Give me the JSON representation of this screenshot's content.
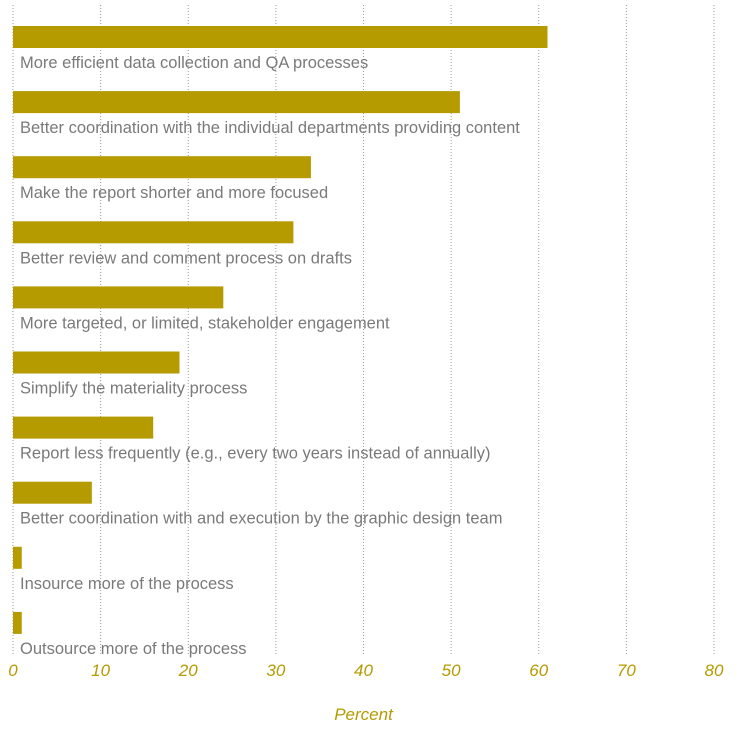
{
  "chart_data": {
    "type": "bar",
    "orientation": "horizontal",
    "categories": [
      "More efficient data collection and QA processes",
      "Better coordination with the individual departments providing content",
      "Make the report shorter and more focused",
      "Better review and comment process on drafts",
      "More targeted, or limited, stakeholder engagement",
      "Simplify the materiality process",
      "Report less frequently (e.g., every two years instead of annually)",
      "Better coordination with and execution by the graphic design team",
      "Insource more of the process",
      "Outsource more of the process"
    ],
    "values": [
      61,
      51,
      34,
      32,
      24,
      19,
      16,
      9,
      1,
      1
    ],
    "xlabel": "Percent",
    "ylabel": "",
    "xlim": [
      0,
      80
    ],
    "xticks": [
      "0",
      "10",
      "20",
      "30",
      "40",
      "50",
      "60",
      "70",
      "80"
    ],
    "grid": "vertical dotted",
    "legend": "none",
    "colors": {
      "bar": "#b59a00",
      "category_text": "#7a7a7a",
      "axis_text": "#b59a00",
      "grid": "#9a9a9a"
    }
  }
}
